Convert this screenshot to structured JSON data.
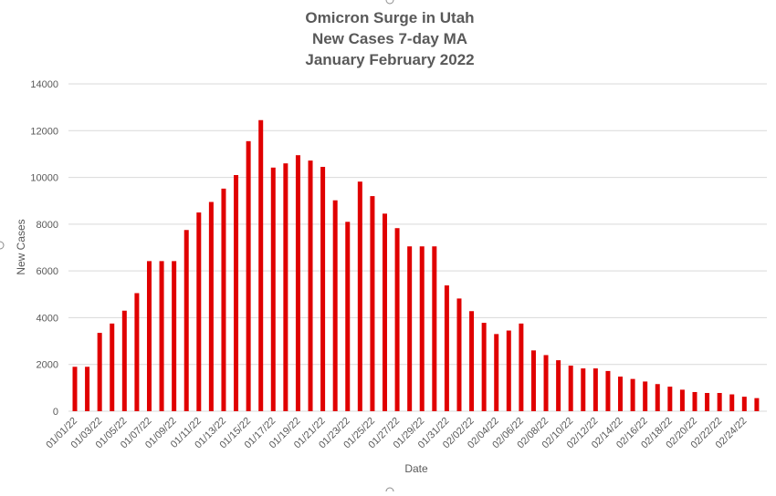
{
  "chart_data": {
    "type": "bar",
    "title": [
      "Omicron Surge in Utah",
      "New Cases 7-day MA",
      "January February 2022"
    ],
    "xlabel": "Date",
    "ylabel": "New Cases",
    "ylim": [
      0,
      14000
    ],
    "yticks": [
      0,
      2000,
      4000,
      6000,
      8000,
      10000,
      12000,
      14000
    ],
    "grid": true,
    "legend": "none",
    "bar_color": "#e00000",
    "categories": [
      "01/01/22",
      "01/02/22",
      "01/03/22",
      "01/04/22",
      "01/05/22",
      "01/06/22",
      "01/07/22",
      "01/08/22",
      "01/09/22",
      "01/10/22",
      "01/11/22",
      "01/12/22",
      "01/13/22",
      "01/14/22",
      "01/15/22",
      "01/16/22",
      "01/17/22",
      "01/18/22",
      "01/19/22",
      "01/20/22",
      "01/21/22",
      "01/22/22",
      "01/23/22",
      "01/24/22",
      "01/25/22",
      "01/26/22",
      "01/27/22",
      "01/28/22",
      "01/29/22",
      "01/30/22",
      "01/31/22",
      "02/01/22",
      "02/02/22",
      "02/03/22",
      "02/04/22",
      "02/05/22",
      "02/06/22",
      "02/07/22",
      "02/08/22",
      "02/09/22",
      "02/10/22",
      "02/11/22",
      "02/12/22",
      "02/13/22",
      "02/14/22",
      "02/15/22",
      "02/16/22",
      "02/17/22",
      "02/18/22",
      "02/19/22",
      "02/20/22",
      "02/21/22",
      "02/22/22",
      "02/23/22",
      "02/24/22",
      "02/25/22"
    ],
    "xtick_labels": [
      "01/01/22",
      "01/03/22",
      "01/05/22",
      "01/07/22",
      "01/09/22",
      "01/11/22",
      "01/13/22",
      "01/15/22",
      "01/17/22",
      "01/19/22",
      "01/21/22",
      "01/23/22",
      "01/25/22",
      "01/27/22",
      "01/29/22",
      "01/31/22",
      "02/02/22",
      "02/04/22",
      "02/06/22",
      "02/08/22",
      "02/10/22",
      "02/12/22",
      "02/14/22",
      "02/16/22",
      "02/18/22",
      "02/20/22",
      "02/22/22",
      "02/24/22"
    ],
    "values": [
      1900,
      1900,
      3350,
      3750,
      4300,
      5050,
      6420,
      6420,
      6420,
      7750,
      8500,
      8950,
      9520,
      10100,
      11550,
      12450,
      10420,
      10600,
      10950,
      10720,
      10450,
      9020,
      8100,
      9820,
      9200,
      8450,
      7830,
      7050,
      7050,
      7050,
      5380,
      4820,
      4280,
      3780,
      3300,
      3450,
      3750,
      2600,
      2400,
      2180,
      1950,
      1830,
      1830,
      1720,
      1480,
      1380,
      1270,
      1160,
      1050,
      920,
      820,
      780,
      780,
      720,
      620,
      560
    ]
  }
}
